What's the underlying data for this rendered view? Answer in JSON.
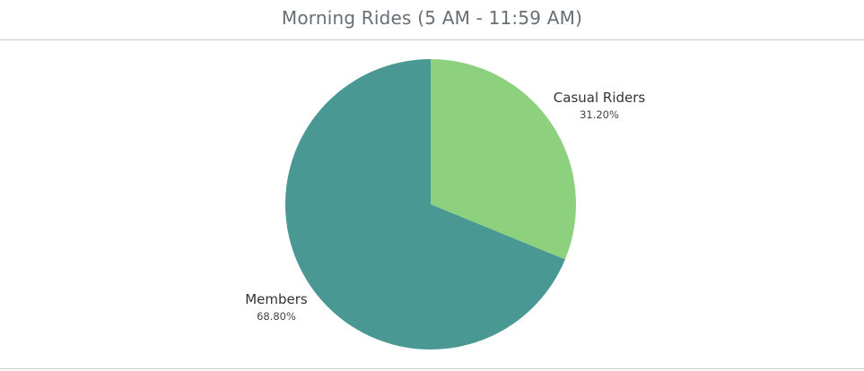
{
  "chart_data": {
    "type": "pie",
    "title": "Morning Rides (5 AM - 11:59 AM)",
    "slices": [
      {
        "name": "Casual Riders",
        "value": 31.2,
        "label": "31.20%",
        "color": "#8dd17e"
      },
      {
        "name": "Members",
        "value": 68.8,
        "label": "68.80%",
        "color": "#4a9893"
      }
    ]
  }
}
